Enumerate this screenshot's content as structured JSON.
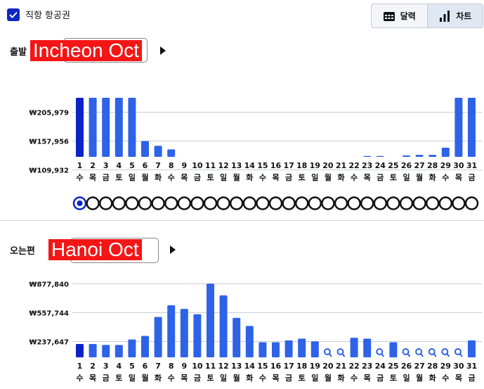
{
  "filter": {
    "direct_only_label": "직항 항공권",
    "checked": true
  },
  "view_toggle": {
    "calendar_label": "달력",
    "chart_label": "차트",
    "active": "chart"
  },
  "outbound": {
    "label": "출발",
    "route": "Incheon Oct",
    "selected_day": 1
  },
  "inbound": {
    "label": "오는편",
    "route": "Hanoi Oct"
  },
  "colors": {
    "bar": "#2e63e8",
    "bar_selected": "#0c24c7",
    "accent": "#0d26c4",
    "route_highlight": "#f41616",
    "search_icon": "#2e63e8"
  },
  "chart_data": [
    {
      "type": "bar",
      "name": "outbound",
      "x": [
        "1",
        "2",
        "3",
        "4",
        "5",
        "6",
        "7",
        "8",
        "9",
        "10",
        "11",
        "12",
        "13",
        "14",
        "15",
        "16",
        "17",
        "18",
        "19",
        "20",
        "21",
        "22",
        "23",
        "24",
        "25",
        "26",
        "27",
        "28",
        "29",
        "30",
        "31"
      ],
      "weekdays": [
        "수",
        "목",
        "금",
        "토",
        "일",
        "월",
        "화",
        "수",
        "목",
        "금",
        "토",
        "일",
        "월",
        "화",
        "수",
        "목",
        "금",
        "토",
        "일",
        "월",
        "화",
        "수",
        "목",
        "금",
        "토",
        "일",
        "월",
        "화",
        "수",
        "목",
        "금"
      ],
      "values": [
        230000,
        230000,
        230000,
        230000,
        230000,
        158000,
        150000,
        144000,
        112000,
        112000,
        112000,
        110000,
        110000,
        112000,
        109000,
        118000,
        112000,
        127000,
        113000,
        126000,
        126000,
        120000,
        133000,
        133000,
        128000,
        134000,
        135000,
        135000,
        147000,
        230000,
        230000
      ],
      "values_note_clipped_above": 205979,
      "yticks": [
        "₩205,979",
        "₩157,956",
        "₩109,932"
      ],
      "ytick_values": [
        205979,
        157956,
        109932
      ],
      "selected_index": 0
    },
    {
      "type": "bar",
      "name": "inbound",
      "x": [
        "1",
        "2",
        "3",
        "4",
        "5",
        "6",
        "7",
        "8",
        "9",
        "10",
        "11",
        "12",
        "13",
        "14",
        "15",
        "16",
        "17",
        "18",
        "19",
        "20",
        "21",
        "22",
        "23",
        "24",
        "25",
        "26",
        "27",
        "28",
        "29",
        "30",
        "31"
      ],
      "weekdays": [
        "수",
        "목",
        "금",
        "토",
        "일",
        "월",
        "화",
        "수",
        "목",
        "금",
        "토",
        "일",
        "월",
        "화",
        "수",
        "목",
        "금",
        "토",
        "일",
        "월",
        "화",
        "수",
        "목",
        "금",
        "토",
        "일",
        "월",
        "화",
        "수",
        "목",
        "금"
      ],
      "values": [
        210000,
        210000,
        200000,
        200000,
        260000,
        300000,
        510000,
        640000,
        600000,
        540000,
        880000,
        750000,
        500000,
        410000,
        230000,
        230000,
        250000,
        270000,
        240000,
        null,
        null,
        280000,
        270000,
        null,
        230000,
        null,
        null,
        null,
        null,
        null,
        250000
      ],
      "yticks": [
        "₩877,840",
        "₩557,744",
        "₩237,647"
      ],
      "ytick_values": [
        877840,
        557744,
        237647
      ],
      "selected_index": 0
    }
  ]
}
